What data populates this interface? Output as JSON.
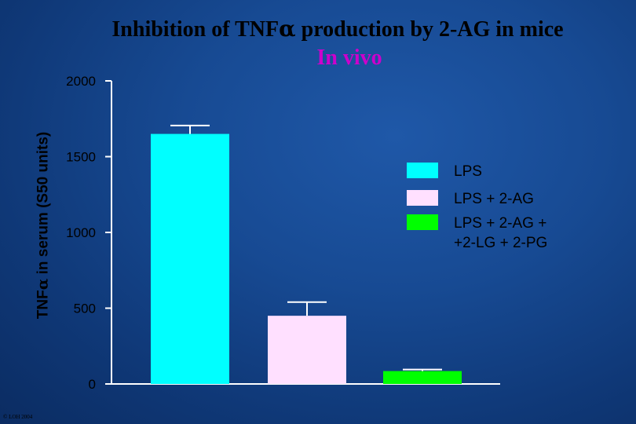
{
  "chart_data": {
    "type": "bar",
    "title_prefix": "Inhibition of TNF",
    "title_symbol": "α",
    "title_suffix": " production by 2-AG in mice",
    "subtitle": "In vivo",
    "ylabel_prefix": "TNF",
    "ylabel_symbol": "α",
    "ylabel_suffix": " in serum (S50 units)",
    "xlabel": "",
    "ylim": [
      0,
      2000
    ],
    "yticks": [
      0,
      500,
      1000,
      1500,
      2000
    ],
    "categories": [
      "LPS",
      "LPS + 2-AG",
      "LPS + 2-AG + +2-LG + 2-PG"
    ],
    "values": [
      1650,
      450,
      85
    ],
    "errors": [
      55,
      90,
      10
    ],
    "legend_position": "right",
    "legend": [
      {
        "label_lines": [
          "LPS"
        ],
        "color": "#00ffff"
      },
      {
        "label_lines": [
          "LPS + 2-AG"
        ],
        "color": "#ffe0ff"
      },
      {
        "label_lines": [
          "LPS + 2-AG +",
          "+2-LG + 2-PG"
        ],
        "color": "#00ff00"
      }
    ],
    "colors": {
      "bars": [
        "#00ffff",
        "#ffe0ff",
        "#00ff00"
      ],
      "axis": "#ffffff",
      "subtitle": "#cc00cc",
      "title": "#000000"
    }
  },
  "footer": {
    "copyright": "© LOH 2004"
  }
}
